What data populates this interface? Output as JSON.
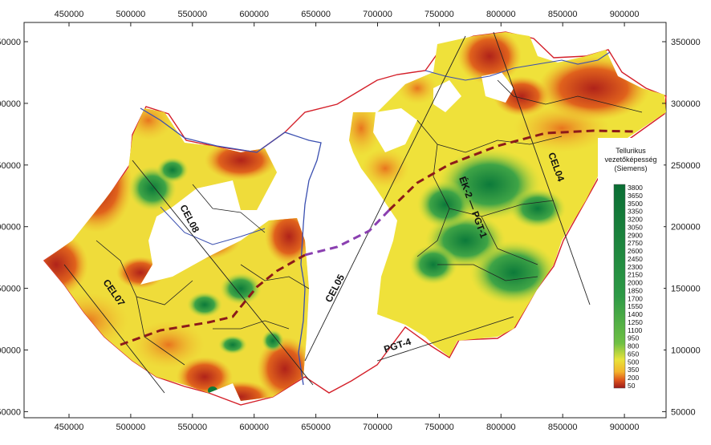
{
  "map": {
    "x_ticks": [
      "450000",
      "500000",
      "550000",
      "600000",
      "650000",
      "700000",
      "750000",
      "800000",
      "850000",
      "900000"
    ],
    "y_ticks": [
      "350000",
      "300000",
      "250000",
      "200000",
      "150000",
      "100000",
      "50000"
    ],
    "profile_lines": {
      "cel08": "CEL08",
      "cel07": "CEL07",
      "cel05": "CEL05",
      "cel04": "CEL04",
      "ek2_pgt1": "ÉK-2 — PGT-1",
      "pgt4": "PGT-4"
    }
  },
  "legend": {
    "title_line1": "Tellurikus",
    "title_line2": "vezetőképesség",
    "title_line3": "(Siemens)",
    "ticks": [
      "3800",
      "3650",
      "3500",
      "3350",
      "3200",
      "3050",
      "2900",
      "2750",
      "2600",
      "2450",
      "2300",
      "2150",
      "2000",
      "1850",
      "1700",
      "1550",
      "1400",
      "1250",
      "1100",
      "950",
      "800",
      "650",
      "500",
      "350",
      "200",
      "50"
    ]
  },
  "colors": {
    "high": "#0a7a3c",
    "mid_high": "#56b03c",
    "mid": "#d6e23a",
    "low_mid": "#f3e23a",
    "low": "#e36a1c",
    "lowest": "#9b1a1a",
    "border": "#d4202a",
    "river": "#3a4fb0",
    "dashed_maroon": "#8c1a1a",
    "dashed_purple": "#8a3fb0"
  }
}
